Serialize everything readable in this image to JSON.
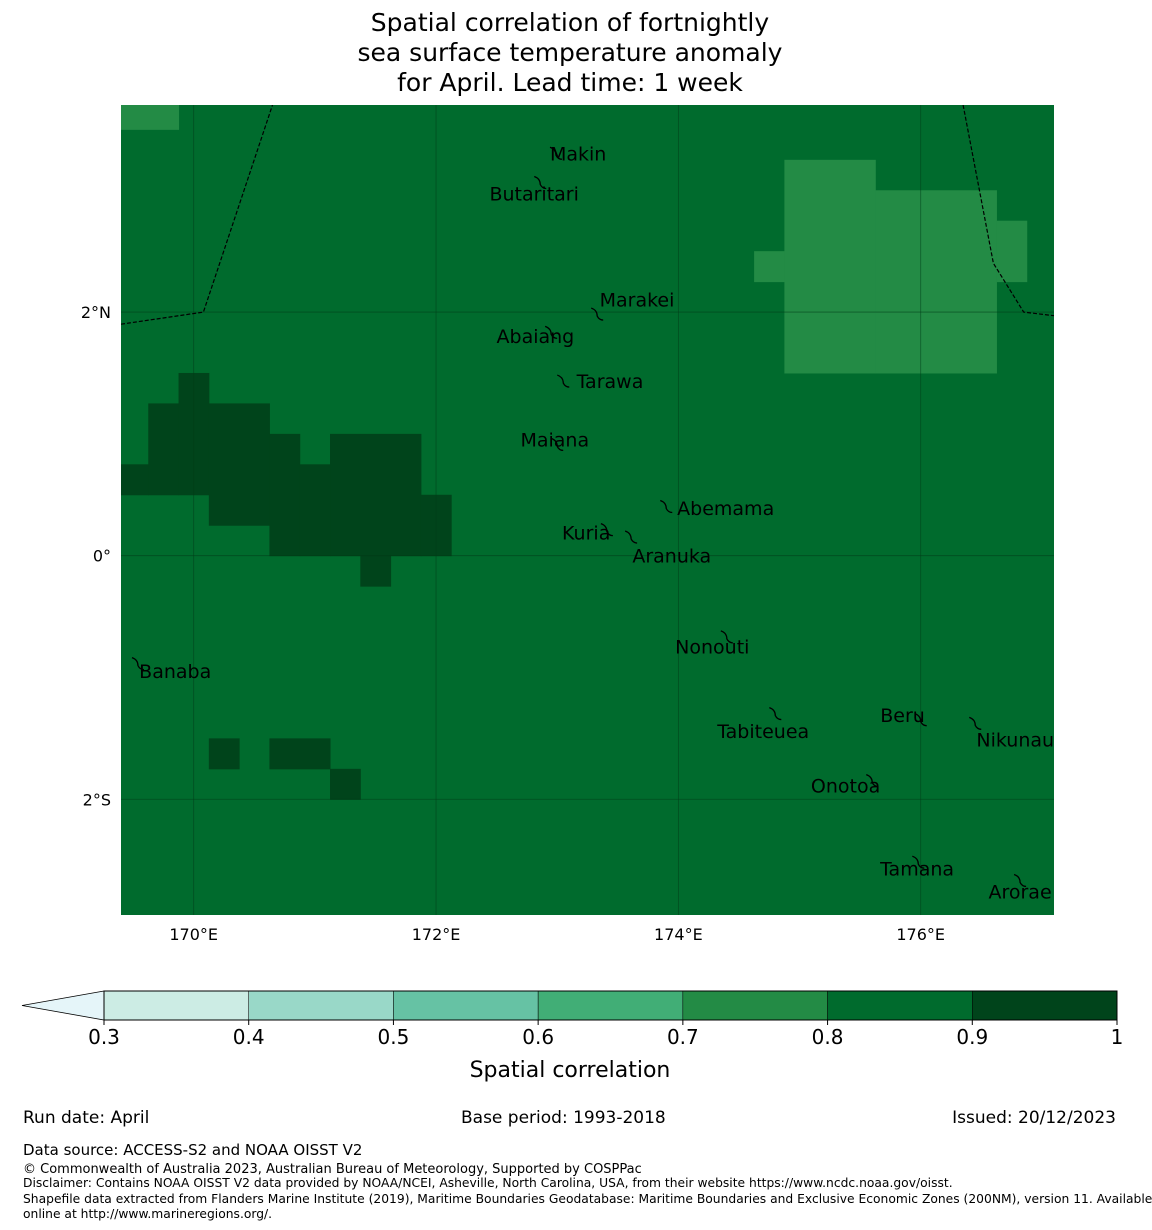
{
  "title_lines": [
    "Spatial correlation of fortnightly",
    "sea surface temperature anomaly",
    "for April. Lead time: 1 week"
  ],
  "map": {
    "lon_range": [
      169.4,
      177.1
    ],
    "lat_range": [
      -2.95,
      3.7
    ],
    "lon_ticks": [
      {
        "value": 170,
        "label": "170°E"
      },
      {
        "value": 172,
        "label": "172°E"
      },
      {
        "value": 174,
        "label": "174°E"
      },
      {
        "value": 176,
        "label": "176°E"
      }
    ],
    "lat_ticks": [
      {
        "value": 2,
        "label": "2°N"
      },
      {
        "value": 0,
        "label": "0°"
      },
      {
        "value": -2,
        "label": "2°S"
      }
    ],
    "background_color": "#006b2d",
    "cells_light": [
      {
        "lon": [
          169.4,
          169.875
        ],
        "lat": [
          3.5,
          3.7
        ]
      },
      {
        "lon": [
          174.625,
          174.875
        ],
        "lat": [
          2.5,
          2.25
        ]
      },
      {
        "lon": [
          174.875,
          175.625
        ],
        "lat": [
          3.25,
          1.5
        ]
      },
      {
        "lon": [
          175.625,
          176.625
        ],
        "lat": [
          3.0,
          1.5
        ]
      },
      {
        "lon": [
          176.625,
          176.875
        ],
        "lat": [
          2.75,
          2.25
        ]
      }
    ],
    "cells_dark": [
      {
        "lon": [
          169.4,
          169.625
        ],
        "lat": [
          0.75,
          0.5
        ]
      },
      {
        "lon": [
          169.625,
          169.875
        ],
        "lat": [
          1.25,
          0.5
        ]
      },
      {
        "lon": [
          169.875,
          170.125
        ],
        "lat": [
          1.5,
          0.5
        ]
      },
      {
        "lon": [
          170.125,
          170.625
        ],
        "lat": [
          1.25,
          0.25
        ]
      },
      {
        "lon": [
          170.625,
          170.875
        ],
        "lat": [
          1.0,
          0.0
        ]
      },
      {
        "lon": [
          170.875,
          171.125
        ],
        "lat": [
          0.75,
          0.0
        ]
      },
      {
        "lon": [
          171.125,
          171.875
        ],
        "lat": [
          1.0,
          0.0
        ]
      },
      {
        "lon": [
          171.875,
          172.125
        ],
        "lat": [
          0.5,
          0.0
        ]
      },
      {
        "lon": [
          171.375,
          171.625
        ],
        "lat": [
          0.0,
          -0.25
        ]
      },
      {
        "lon": [
          170.125,
          170.375
        ],
        "lat": [
          -1.5,
          -1.75
        ]
      },
      {
        "lon": [
          170.625,
          171.125
        ],
        "lat": [
          -1.5,
          -1.75
        ]
      },
      {
        "lon": [
          171.125,
          171.375
        ],
        "lat": [
          -1.75,
          -2.0
        ]
      }
    ],
    "eez_west": [
      [
        169.4,
        1.9
      ],
      [
        170.08,
        2.0
      ],
      [
        170.65,
        3.7
      ]
    ],
    "eez_east": [
      [
        176.35,
        3.7
      ],
      [
        176.6,
        2.4
      ],
      [
        176.85,
        2.0
      ],
      [
        177.1,
        1.97
      ]
    ],
    "islands": [
      {
        "name": "Makin",
        "lon": 172.99,
        "lat": 3.32,
        "label_lon": 172.94,
        "label_lat": 3.29,
        "anchor": "start"
      },
      {
        "name": "Butaritari",
        "lon": 172.86,
        "lat": 3.08,
        "label_lon": 172.81,
        "label_lat": 2.96,
        "anchor": "middle"
      },
      {
        "name": "Marakei",
        "lon": 173.33,
        "lat": 2.0,
        "label_lon": 173.35,
        "label_lat": 2.09,
        "anchor": "start"
      },
      {
        "name": "Abaiang",
        "lon": 172.95,
        "lat": 1.85,
        "label_lon": 172.82,
        "label_lat": 1.79,
        "anchor": "middle"
      },
      {
        "name": "Tarawa",
        "lon": 173.05,
        "lat": 1.45,
        "label_lon": 173.16,
        "label_lat": 1.42,
        "anchor": "start"
      },
      {
        "name": "Maiana",
        "lon": 173.0,
        "lat": 0.93,
        "label_lon": 172.98,
        "label_lat": 0.94,
        "anchor": "middle"
      },
      {
        "name": "Abemama",
        "lon": 173.9,
        "lat": 0.42,
        "label_lon": 173.99,
        "label_lat": 0.38,
        "anchor": "start"
      },
      {
        "name": "Kuria",
        "lon": 173.41,
        "lat": 0.23,
        "label_lon": 173.04,
        "label_lat": 0.18,
        "anchor": "start"
      },
      {
        "name": "Aranuka",
        "lon": 173.61,
        "lat": 0.17,
        "label_lon": 173.62,
        "label_lat": -0.01,
        "anchor": "start"
      },
      {
        "name": "Nonouti",
        "lon": 174.4,
        "lat": -0.65,
        "label_lon": 174.28,
        "label_lat": -0.76,
        "anchor": "middle"
      },
      {
        "name": "Banaba",
        "lon": 169.54,
        "lat": -0.87,
        "label_lon": 169.55,
        "label_lat": -0.96,
        "anchor": "start"
      },
      {
        "name": "Tabiteuea",
        "lon": 174.8,
        "lat": -1.28,
        "label_lon": 174.7,
        "label_lat": -1.45,
        "anchor": "middle"
      },
      {
        "name": "Beru",
        "lon": 176.0,
        "lat": -1.33,
        "label_lon": 175.85,
        "label_lat": -1.32,
        "anchor": "middle"
      },
      {
        "name": "Nikunau",
        "lon": 176.45,
        "lat": -1.36,
        "label_lon": 176.78,
        "label_lat": -1.52,
        "anchor": "middle"
      },
      {
        "name": "Onotoa",
        "lon": 175.6,
        "lat": -1.83,
        "label_lon": 175.38,
        "label_lat": -1.9,
        "anchor": "middle"
      },
      {
        "name": "Tamana",
        "lon": 175.98,
        "lat": -2.5,
        "label_lon": 175.97,
        "label_lat": -2.58,
        "anchor": "middle"
      },
      {
        "name": "Arorae",
        "lon": 176.82,
        "lat": -2.65,
        "label_lon": 176.82,
        "label_lat": -2.77,
        "anchor": "middle"
      }
    ]
  },
  "colorbar": {
    "label": "Spatial correlation",
    "ticks": [
      "0.3",
      "0.4",
      "0.5",
      "0.6",
      "0.7",
      "0.8",
      "0.9",
      "1"
    ],
    "colors": [
      "#ccece4",
      "#99d8c8",
      "#66c2a4",
      "#41ae76",
      "#238b45",
      "#006b2d",
      "#00441b"
    ],
    "extend_color": "#e5f5f9"
  },
  "footer": {
    "run_date": "Run date: April",
    "base_period": "Base period: 1993-2018",
    "issued": "Issued: 20/12/2023",
    "data_source": "Data source: ACCESS-S2 and NOAA OISST V2",
    "copyright": "© Commonwealth of Australia 2023, Australian Bureau of Meteorology, Supported by COSPPac",
    "disclaimer": "Disclaimer: Contains NOAA OISST V2 data provided by NOAA/NCEI, Asheville, North Carolina, USA, from their website https://www.ncdc.noaa.gov/oisst.",
    "shapefile_line1": "Shapefile data extracted from Flanders Marine Institute (2019), Maritime Boundaries Geodatabase: Maritime Boundaries and Exclusive Economic Zones (200NM), version 11. Available",
    "shapefile_line2": "online at http://www.marineregions.org/."
  }
}
